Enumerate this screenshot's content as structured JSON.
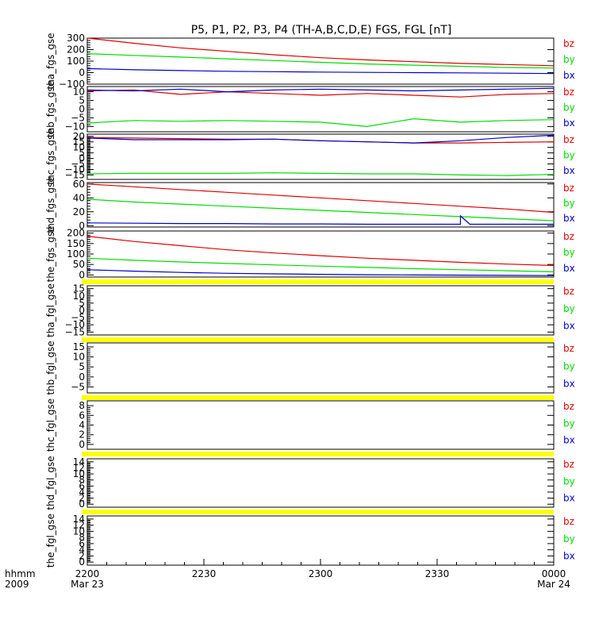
{
  "title": "P5, P1, P2, P3, P4 (TH-A,B,C,D,E) FGS, FGL [nT]",
  "colors": {
    "bz": "#e00000",
    "by": "#00dd00",
    "bx": "#0000cc",
    "flag": "#ffff00",
    "axis": "#000000"
  },
  "legend": [
    "bz",
    "by",
    "bx"
  ],
  "x_axis": {
    "row_labels": [
      "hhmm",
      "2009"
    ],
    "ticks": [
      {
        "label": "2200",
        "sub": "Mar 23"
      },
      {
        "label": "2230",
        "sub": ""
      },
      {
        "label": "2300",
        "sub": ""
      },
      {
        "label": "2330",
        "sub": ""
      },
      {
        "label": "0000",
        "sub": "Mar 24"
      }
    ]
  },
  "chart_data": [
    {
      "type": "line",
      "ylabel": "tha_fgs_gse",
      "yticks": [
        "300",
        "200",
        "100",
        "0",
        "−100"
      ],
      "ylim": [
        -100,
        300
      ],
      "flag": false,
      "series": [
        {
          "name": "bz",
          "color": "#e00000",
          "x": [
            0,
            0.1,
            0.2,
            0.3,
            0.4,
            0.5,
            0.6,
            0.7,
            0.8,
            0.9,
            1
          ],
          "values": [
            300,
            255,
            215,
            185,
            155,
            130,
            110,
            95,
            80,
            70,
            60
          ]
        },
        {
          "name": "by",
          "color": "#00dd00",
          "x": [
            0,
            0.1,
            0.2,
            0.3,
            0.4,
            0.5,
            0.6,
            0.7,
            0.8,
            0.9,
            1
          ],
          "values": [
            165,
            150,
            135,
            120,
            105,
            90,
            75,
            65,
            55,
            45,
            40
          ]
        },
        {
          "name": "bx",
          "color": "#0000cc",
          "x": [
            0,
            0.1,
            0.2,
            0.3,
            0.4,
            0.5,
            0.6,
            0.7,
            0.8,
            0.9,
            1
          ],
          "values": [
            35,
            25,
            18,
            12,
            8,
            5,
            2,
            0,
            -2,
            -5,
            -8
          ]
        }
      ]
    },
    {
      "type": "line",
      "ylabel": "thb_fgs_gse",
      "yticks": [
        "10",
        "5",
        "0",
        "−5",
        "−10"
      ],
      "ylim": [
        -13,
        13
      ],
      "flag": false,
      "series": [
        {
          "name": "bz",
          "color": "#e00000",
          "x": [
            0,
            0.1,
            0.2,
            0.3,
            0.4,
            0.5,
            0.6,
            0.7,
            0.8,
            0.9,
            1
          ],
          "values": [
            10.5,
            11,
            8.5,
            10,
            9,
            8,
            9,
            8,
            7,
            8.5,
            9
          ]
        },
        {
          "name": "by",
          "color": "#00dd00",
          "x": [
            0,
            0.1,
            0.2,
            0.3,
            0.4,
            0.5,
            0.6,
            0.7,
            0.8,
            0.9,
            1
          ],
          "values": [
            -8,
            -6.5,
            -7,
            -6.5,
            -7,
            -7.5,
            -10,
            -5.5,
            -7.5,
            -6.5,
            -6
          ]
        },
        {
          "name": "bx",
          "color": "#0000cc",
          "x": [
            0,
            0.1,
            0.2,
            0.3,
            0.4,
            0.5,
            0.6,
            0.7,
            0.8,
            0.9,
            1
          ],
          "values": [
            11,
            10.5,
            11.5,
            10,
            11,
            11.5,
            11,
            10.5,
            11,
            11.5,
            12
          ]
        }
      ]
    },
    {
      "type": "line",
      "ylabel": "thc_fgs_gse",
      "yticks": [
        "20",
        "15",
        "10",
        "5",
        "0",
        "−5",
        "−10",
        "−15"
      ],
      "ylim": [
        -19,
        22
      ],
      "flag": false,
      "series": [
        {
          "name": "bz",
          "color": "#e00000",
          "x": [
            0,
            0.1,
            0.2,
            0.3,
            0.4,
            0.5,
            0.6,
            0.7,
            0.8,
            0.9,
            1
          ],
          "values": [
            19,
            18.5,
            18,
            17.5,
            17.5,
            16,
            15,
            14,
            14,
            14.5,
            15
          ]
        },
        {
          "name": "by",
          "color": "#00dd00",
          "x": [
            0,
            0.1,
            0.2,
            0.3,
            0.4,
            0.5,
            0.6,
            0.7,
            0.8,
            0.9,
            1
          ],
          "values": [
            -14,
            -13.5,
            -13.5,
            -13.5,
            -13,
            -13.5,
            -14,
            -14,
            -15,
            -15.5,
            -14.5
          ]
        },
        {
          "name": "bx",
          "color": "#0000cc",
          "x": [
            0,
            0.1,
            0.2,
            0.3,
            0.4,
            0.5,
            0.6,
            0.7,
            0.8,
            0.9,
            1
          ],
          "values": [
            18.5,
            17,
            17,
            17,
            17.5,
            16,
            15,
            14,
            16,
            19,
            21
          ]
        }
      ]
    },
    {
      "type": "line",
      "ylabel": "thd_fgs_gse",
      "yticks": [
        "60",
        "40",
        "20",
        "0"
      ],
      "ylim": [
        -2,
        62
      ],
      "flag": false,
      "series": [
        {
          "name": "bz",
          "color": "#e00000",
          "x": [
            0,
            0.1,
            0.2,
            0.3,
            0.4,
            0.5,
            0.6,
            0.7,
            0.8,
            0.9,
            1
          ],
          "values": [
            60,
            56,
            52,
            48,
            44,
            40,
            36,
            32,
            28,
            24,
            19
          ]
        },
        {
          "name": "by",
          "color": "#00dd00",
          "x": [
            0,
            0.1,
            0.2,
            0.3,
            0.4,
            0.5,
            0.6,
            0.7,
            0.8,
            0.9,
            1
          ],
          "values": [
            38,
            34,
            31,
            28,
            25,
            22,
            19,
            16,
            13,
            10,
            7
          ]
        },
        {
          "name": "bx",
          "color": "#0000cc",
          "x": [
            0,
            0.1,
            0.2,
            0.3,
            0.4,
            0.5,
            0.6,
            0.7,
            0.8,
            0.8,
            0.82,
            0.9,
            1
          ],
          "values": [
            4,
            3.5,
            3,
            3,
            2.5,
            2.5,
            2,
            2,
            2,
            14,
            2,
            2,
            2
          ]
        }
      ]
    },
    {
      "type": "line",
      "ylabel": "the_fgs_gse",
      "yticks": [
        "200",
        "150",
        "100",
        "50",
        "0"
      ],
      "ylim": [
        -10,
        210
      ],
      "flag": true,
      "series": [
        {
          "name": "bz",
          "color": "#e00000",
          "x": [
            0,
            0.1,
            0.2,
            0.3,
            0.4,
            0.5,
            0.6,
            0.7,
            0.8,
            0.9,
            1
          ],
          "values": [
            185,
            160,
            140,
            120,
            105,
            92,
            80,
            70,
            60,
            52,
            45
          ]
        },
        {
          "name": "by",
          "color": "#00dd00",
          "x": [
            0,
            0.1,
            0.2,
            0.3,
            0.4,
            0.5,
            0.6,
            0.7,
            0.8,
            0.9,
            1
          ],
          "values": [
            80,
            70,
            62,
            55,
            48,
            42,
            36,
            30,
            25,
            20,
            15
          ]
        },
        {
          "name": "bx",
          "color": "#0000cc",
          "x": [
            0,
            0.1,
            0.2,
            0.3,
            0.4,
            0.5,
            0.6,
            0.7,
            0.8,
            0.9,
            1
          ],
          "values": [
            25,
            18,
            12,
            8,
            5,
            3,
            1,
            0,
            -1,
            -2,
            -3
          ]
        }
      ]
    },
    {
      "type": "line",
      "ylabel": "tha_fgl_gse",
      "yticks": [
        "15",
        "10",
        "5",
        "0",
        "−5",
        "−10",
        "−15"
      ],
      "ylim": [
        -17,
        17
      ],
      "flag": true,
      "series": []
    },
    {
      "type": "line",
      "ylabel": "thb_fgl_gse",
      "yticks": [
        "15",
        "10",
        "5",
        "0",
        "−5"
      ],
      "ylim": [
        -8,
        17
      ],
      "flag": true,
      "series": []
    },
    {
      "type": "line",
      "ylabel": "thc_fgl_gse",
      "yticks": [
        "8",
        "6",
        "4",
        "2",
        "0"
      ],
      "ylim": [
        -1,
        9
      ],
      "flag": true,
      "series": []
    },
    {
      "type": "line",
      "ylabel": "thd_fgl_gse",
      "yticks": [
        "14",
        "12",
        "10",
        "8",
        "6",
        "4",
        "2",
        "0"
      ],
      "ylim": [
        -1,
        15
      ],
      "flag": true,
      "series": []
    },
    {
      "type": "line",
      "ylabel": "the_fgl_gse",
      "yticks": [
        "14",
        "12",
        "10",
        "8",
        "6",
        "4",
        "2",
        "0"
      ],
      "ylim": [
        -1,
        15
      ],
      "flag": false,
      "series": []
    }
  ]
}
